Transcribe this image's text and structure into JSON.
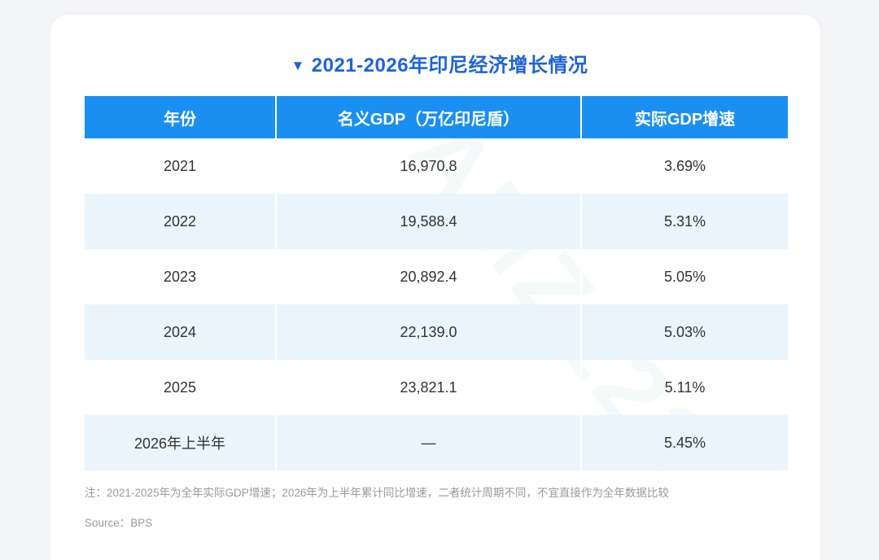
{
  "title": "2021-2026年印尼经济增长情况",
  "table": {
    "headers": [
      "年份",
      "名义GDP（万亿印尼盾）",
      "实际GDP增速"
    ],
    "rows": [
      {
        "year": "2021",
        "gdp": "16,970.8",
        "growth": "3.69%"
      },
      {
        "year": "2022",
        "gdp": "19,588.4",
        "growth": "5.31%"
      },
      {
        "year": "2023",
        "gdp": "20,892.4",
        "growth": "5.05%"
      },
      {
        "year": "2024",
        "gdp": "22,139.0",
        "growth": "5.03%"
      },
      {
        "year": "2025",
        "gdp": "23,821.1",
        "growth": "5.11%"
      },
      {
        "year": "2026年上半年",
        "gdp": "—",
        "growth": "5.45%"
      }
    ]
  },
  "note": "注：2021-2025年为全年实际GDP增速；2026年为上半年累计同比增速，二者统计周期不同，不宜直接作为全年数据比较",
  "source": "Source：BPS",
  "watermark": "AMZ123",
  "colors": {
    "title": "#1d63d8",
    "header_bg": "#1a8ff2",
    "row_alt_bg": "#eaf4fd",
    "note_text": "#9a9a9a"
  }
}
